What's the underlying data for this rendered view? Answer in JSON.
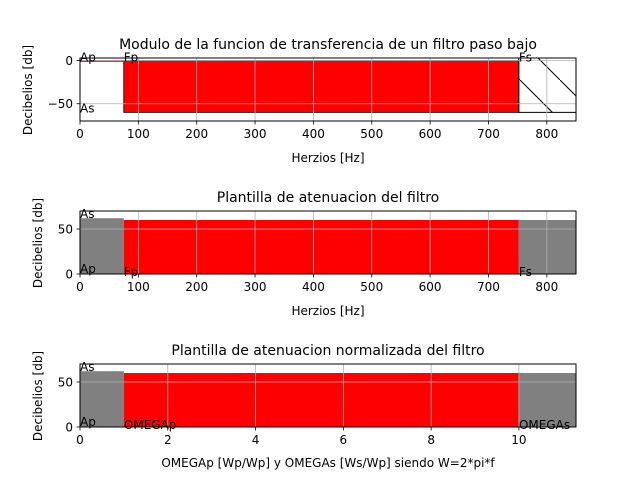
{
  "colors": {
    "passband": "#ff0000",
    "stopband": "#808080",
    "grid": "#b0b0b0",
    "line": "#000000"
  },
  "chart_data": [
    {
      "type": "bar",
      "title": "Modulo de la funcion de transferencia de un filtro paso bajo",
      "xlabel": "Herzios [Hz]",
      "ylabel": "Decibelios [db]",
      "xlim": [
        0,
        850
      ],
      "ylim": [
        -70,
        3
      ],
      "xticks": [
        "0",
        "100",
        "200",
        "300",
        "400",
        "500",
        "600",
        "700",
        "800"
      ],
      "xtick_values": [
        0,
        100,
        200,
        300,
        400,
        500,
        600,
        700,
        800
      ],
      "yticks": [
        "0",
        "−50"
      ],
      "ytick_values": [
        0,
        -50
      ],
      "rect_passband": {
        "x0": 0,
        "x1": 75,
        "y0": -1,
        "y1": 0
      },
      "rect_transition": {
        "x0": 75,
        "x1": 752,
        "y0": -60,
        "y1": 0
      },
      "rect_stopband_hatched": {
        "x0": 752,
        "x1": 850,
        "y0": -60,
        "y1": 3
      },
      "annotations": [
        {
          "text": "Ap",
          "x": 0,
          "y": -1
        },
        {
          "text": "Fp",
          "x": 75,
          "y": -1
        },
        {
          "text": "As",
          "x": 0,
          "y": -60
        },
        {
          "text": "Fs",
          "x": 752,
          "y": -1
        }
      ]
    },
    {
      "type": "bar",
      "title": "Plantilla de atenuacion del filtro",
      "xlabel": "Herzios [Hz]",
      "ylabel": "Decibelios [db]",
      "xlim": [
        0,
        850
      ],
      "ylim": [
        0,
        70
      ],
      "xticks": [
        "0",
        "100",
        "200",
        "300",
        "400",
        "500",
        "600",
        "700",
        "800"
      ],
      "xtick_values": [
        0,
        100,
        200,
        300,
        400,
        500,
        600,
        700,
        800
      ],
      "yticks": [
        "0",
        "50"
      ],
      "ytick_values": [
        0,
        50
      ],
      "bars": [
        {
          "name": "passband",
          "x0": 0,
          "x1": 75,
          "height": 62,
          "color": "stopband"
        },
        {
          "name": "transition",
          "x0": 75,
          "x1": 752,
          "height": 60,
          "color": "passband"
        },
        {
          "name": "stopband",
          "x0": 752,
          "x1": 850,
          "height": 60,
          "color": "stopband"
        }
      ],
      "annotations": [
        {
          "text": "As",
          "x": 0,
          "y": 62
        },
        {
          "text": "Ap",
          "x": 0,
          "y": 1
        },
        {
          "text": "Fp",
          "x": 75,
          "y": -2
        },
        {
          "text": "Fs",
          "x": 752,
          "y": -2
        }
      ]
    },
    {
      "type": "bar",
      "title": "Plantilla de atenuacion normalizada del filtro",
      "xlabel": "OMEGAp [Wp/Wp] y OMEGAs [Ws/Wp] siendo W=2*pi*f",
      "ylabel": "Decibelios [db]",
      "xlim": [
        0,
        11.3
      ],
      "ylim": [
        0,
        70
      ],
      "xticks": [
        "0",
        "2",
        "4",
        "6",
        "8",
        "10"
      ],
      "xtick_values": [
        0,
        2,
        4,
        6,
        8,
        10
      ],
      "yticks": [
        "0",
        "50"
      ],
      "ytick_values": [
        0,
        50
      ],
      "bars": [
        {
          "name": "passband",
          "x0": 0,
          "x1": 1,
          "height": 62,
          "color": "stopband"
        },
        {
          "name": "transition",
          "x0": 1,
          "x1": 10,
          "height": 60,
          "color": "passband"
        },
        {
          "name": "stopband",
          "x0": 10,
          "x1": 11.3,
          "height": 60,
          "color": "stopband"
        }
      ],
      "annotations": [
        {
          "text": "As",
          "x": 0,
          "y": 62
        },
        {
          "text": "Ap",
          "x": 0,
          "y": 1
        },
        {
          "text": "OMEGAp",
          "x": 1,
          "y": -2
        },
        {
          "text": "OMEGAs",
          "x": 10,
          "y": -2
        }
      ]
    }
  ]
}
